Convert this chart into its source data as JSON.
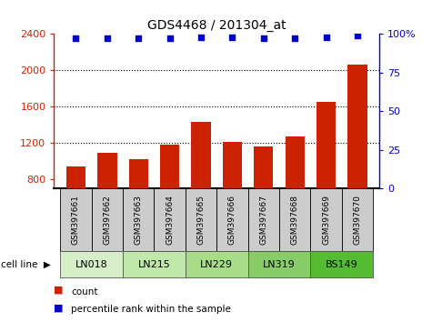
{
  "title": "GDS4468 / 201304_at",
  "samples": [
    "GSM397661",
    "GSM397662",
    "GSM397663",
    "GSM397664",
    "GSM397665",
    "GSM397666",
    "GSM397667",
    "GSM397668",
    "GSM397669",
    "GSM397670"
  ],
  "counts": [
    940,
    1090,
    1020,
    1185,
    1430,
    1210,
    1165,
    1270,
    1650,
    2060
  ],
  "percentile_ranks": [
    97,
    97,
    97,
    97,
    98,
    98,
    97,
    97,
    98,
    99
  ],
  "cell_lines": [
    {
      "label": "LN018",
      "start": 0,
      "end": 1,
      "color": "#d6efc8"
    },
    {
      "label": "LN215",
      "start": 2,
      "end": 3,
      "color": "#c0e8a8"
    },
    {
      "label": "LN229",
      "start": 4,
      "end": 5,
      "color": "#a8dd88"
    },
    {
      "label": "LN319",
      "start": 6,
      "end": 7,
      "color": "#88cc68"
    },
    {
      "label": "BS149",
      "start": 8,
      "end": 9,
      "color": "#55bb33"
    }
  ],
  "ylim_left": [
    700,
    2400
  ],
  "yticks_left": [
    800,
    1200,
    1600,
    2000,
    2400
  ],
  "ylim_right": [
    0,
    100
  ],
  "yticks_right": [
    0,
    25,
    50,
    75,
    100
  ],
  "yticklabels_right": [
    "0",
    "25",
    "50",
    "75",
    "100%"
  ],
  "bar_color": "#cc2200",
  "dot_color": "#0000cc",
  "bar_bottom": 700,
  "grid_lines": [
    1200,
    1600,
    2000
  ],
  "sample_box_color": "#cccccc",
  "bar_width": 0.62
}
